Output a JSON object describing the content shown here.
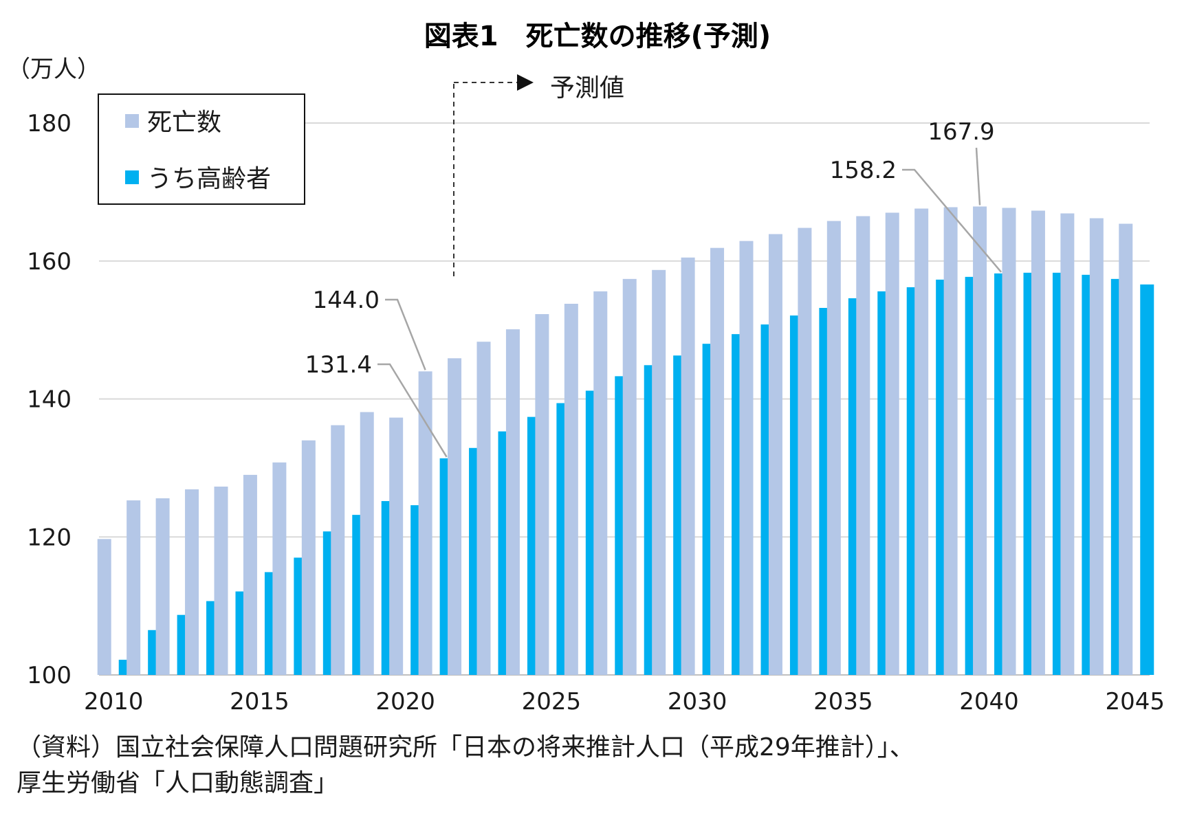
{
  "chart_data": {
    "type": "bar",
    "title": "図表1　死亡数の推移(予測)",
    "unit_label": "（万人）",
    "forecast_label": "予測値",
    "x": [
      2010,
      2011,
      2012,
      2013,
      2014,
      2015,
      2016,
      2017,
      2018,
      2019,
      2020,
      2021,
      2022,
      2023,
      2024,
      2025,
      2026,
      2027,
      2028,
      2029,
      2030,
      2031,
      2032,
      2033,
      2034,
      2035,
      2036,
      2037,
      2038,
      2039,
      2040,
      2041,
      2042,
      2043,
      2044,
      2045
    ],
    "x_tick_labels": [
      "2010",
      "2015",
      "2020",
      "2025",
      "2030",
      "2035",
      "2040",
      "2045"
    ],
    "ylim": [
      100,
      180
    ],
    "y_ticks": [
      "100",
      "120",
      "140",
      "160",
      "180"
    ],
    "grid": true,
    "legend_position": "top-left",
    "series": [
      {
        "name": "死亡数",
        "color": "#b4c7e7",
        "values": [
          119.7,
          125.3,
          125.6,
          126.9,
          127.3,
          129.0,
          130.8,
          134.0,
          136.2,
          138.1,
          137.3,
          144.0,
          145.9,
          148.3,
          150.1,
          152.3,
          153.8,
          155.6,
          157.4,
          158.7,
          160.5,
          161.9,
          162.9,
          163.9,
          164.8,
          165.8,
          166.5,
          167.0,
          167.6,
          167.8,
          167.9,
          167.7,
          167.3,
          166.9,
          166.2,
          165.4
        ]
      },
      {
        "name": "うち高齢者",
        "color": "#00b0f0",
        "values": [
          102.2,
          106.5,
          108.7,
          110.7,
          112.1,
          114.9,
          117.0,
          120.8,
          123.2,
          125.2,
          124.6,
          131.4,
          132.9,
          135.3,
          137.4,
          139.4,
          141.2,
          143.3,
          144.9,
          146.3,
          148.0,
          149.4,
          150.8,
          152.1,
          153.2,
          154.6,
          155.6,
          156.2,
          157.3,
          157.7,
          158.2,
          158.3,
          158.3,
          158.0,
          157.4,
          156.6
        ]
      }
    ],
    "annotations": [
      {
        "label": "144.0",
        "year": 2021,
        "series": 0
      },
      {
        "label": "131.4",
        "year": 2021,
        "series": 1
      },
      {
        "label": "167.9",
        "year": 2040,
        "series": 0
      },
      {
        "label": "158.2",
        "year": 2040,
        "series": 1
      }
    ]
  },
  "source_note": {
    "line1": "（資料）国立社会保障人口問題研究所「日本の将来推計人口（平成29年推計）」、",
    "line2": "厚生労働省「人口動態調査」"
  }
}
